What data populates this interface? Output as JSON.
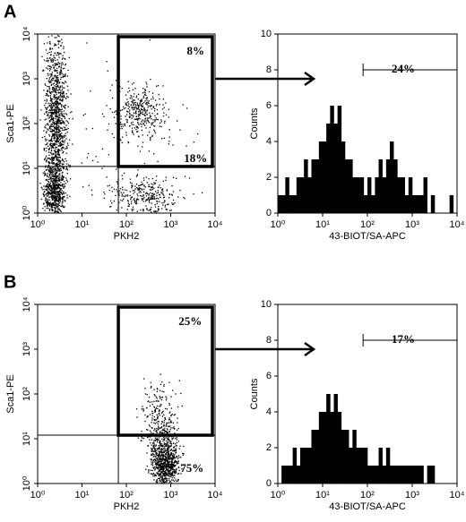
{
  "panels": [
    "A",
    "B"
  ],
  "chart_data": [
    {
      "type": "scatter",
      "xlabel": "PKH2",
      "ylabel": "Sca1-PE",
      "log": true,
      "xlim": [
        1,
        10000
      ],
      "ylim": [
        1,
        10000
      ],
      "xticks": [
        {
          "value": 1,
          "label": "10⁰"
        },
        {
          "value": 10,
          "label": "10¹"
        },
        {
          "value": 100,
          "label": "10²"
        },
        {
          "value": 1000,
          "label": "10³"
        },
        {
          "value": 10000,
          "label": "10⁴"
        }
      ],
      "yticks": [
        {
          "value": 1,
          "label": "10⁰"
        },
        {
          "value": 10,
          "label": "10¹"
        },
        {
          "value": 100,
          "label": "10²"
        },
        {
          "value": 1000,
          "label": "10³"
        },
        {
          "value": 10000,
          "label": "10⁴"
        }
      ],
      "gate": {
        "x": 66,
        "y": 11
      },
      "annotations": [
        "8%",
        "18%"
      ],
      "color": "#000000"
    },
    {
      "type": "histogram",
      "xlabel": "43-BIOT/SA-APC",
      "ylabel": "Counts",
      "log": true,
      "xlim": [
        1,
        10000
      ],
      "ylim": [
        0,
        10
      ],
      "xticks": [
        {
          "value": 1,
          "label": "10⁰"
        },
        {
          "value": 10,
          "label": "10¹"
        },
        {
          "value": 100,
          "label": "10²"
        },
        {
          "value": 1000,
          "label": "10³"
        },
        {
          "value": 10000,
          "label": "10⁴"
        }
      ],
      "yticks": [
        0,
        2,
        4,
        6,
        8,
        10
      ],
      "bins": [
        1,
        1.21,
        1.47,
        1.78,
        2.15,
        2.61,
        3.16,
        3.83,
        4.64,
        5.62,
        6.81,
        8.25,
        10,
        12.1,
        14.7,
        17.8,
        21.5,
        26.1,
        31.6,
        38.3,
        46.4,
        56.2,
        68.1,
        82.5,
        100,
        121,
        147,
        178,
        215,
        261,
        316,
        383,
        464,
        562,
        681,
        825,
        1000,
        1210,
        1470,
        1780,
        2150,
        2610,
        3160,
        3830,
        4640,
        5620,
        6810,
        8250,
        10000
      ],
      "values": [
        1,
        1,
        2,
        1,
        1,
        2,
        2,
        3,
        2,
        3,
        3,
        4,
        4,
        5,
        6,
        5,
        6,
        4,
        3,
        3,
        2,
        2,
        2,
        1,
        2,
        1,
        2,
        3,
        2,
        3,
        4,
        3,
        2,
        2,
        1,
        2,
        1,
        1,
        1,
        2,
        0,
        1,
        0,
        0,
        0,
        0,
        1,
        0
      ],
      "gate": {
        "range": [
          80,
          10000
        ],
        "level": 8
      },
      "annotations": [
        "24%"
      ],
      "color": "#000000"
    },
    {
      "type": "scatter",
      "xlabel": "PKH2",
      "ylabel": "Sca1-PE",
      "log": true,
      "xlim": [
        1,
        10000
      ],
      "ylim": [
        1,
        10000
      ],
      "xticks": [
        {
          "value": 1,
          "label": "10⁰"
        },
        {
          "value": 10,
          "label": "10¹"
        },
        {
          "value": 100,
          "label": "10²"
        },
        {
          "value": 1000,
          "label": "10³"
        },
        {
          "value": 10000,
          "label": "10⁴"
        }
      ],
      "yticks": [
        {
          "value": 1,
          "label": "10⁰"
        },
        {
          "value": 10,
          "label": "10¹"
        },
        {
          "value": 100,
          "label": "10²"
        },
        {
          "value": 1000,
          "label": "10³"
        },
        {
          "value": 10000,
          "label": "10⁴"
        }
      ],
      "gate": {
        "x": 66,
        "y": 12
      },
      "annotations": [
        "25%",
        "75%"
      ],
      "color": "#000000"
    },
    {
      "type": "histogram",
      "xlabel": "43-BIOT/SA-APC",
      "ylabel": "Counts",
      "log": true,
      "xlim": [
        1,
        10000
      ],
      "ylim": [
        0,
        10
      ],
      "xticks": [
        {
          "value": 1,
          "label": "10⁰"
        },
        {
          "value": 10,
          "label": "10¹"
        },
        {
          "value": 100,
          "label": "10²"
        },
        {
          "value": 1000,
          "label": "10³"
        },
        {
          "value": 10000,
          "label": "10⁴"
        }
      ],
      "yticks": [
        0,
        2,
        4,
        6,
        8,
        10
      ],
      "bins": [
        1,
        1.21,
        1.47,
        1.78,
        2.15,
        2.61,
        3.16,
        3.83,
        4.64,
        5.62,
        6.81,
        8.25,
        10,
        12.1,
        14.7,
        17.8,
        21.5,
        26.1,
        31.6,
        38.3,
        46.4,
        56.2,
        68.1,
        82.5,
        100,
        121,
        147,
        178,
        215,
        261,
        316,
        383,
        464,
        562,
        681,
        825,
        1000,
        1210,
        1470,
        1780,
        2150,
        2610,
        3160,
        3830,
        4640,
        5620,
        6810,
        8250,
        10000
      ],
      "values": [
        0,
        1,
        1,
        1,
        2,
        1,
        2,
        2,
        2,
        3,
        3,
        4,
        4,
        5,
        4,
        5,
        4,
        3,
        3,
        2,
        3,
        2,
        2,
        2,
        1,
        1,
        1,
        2,
        1,
        2,
        1,
        1,
        1,
        1,
        1,
        1,
        1,
        1,
        1,
        0,
        1,
        1,
        0,
        0,
        0,
        0,
        0,
        0
      ],
      "gate": {
        "range": [
          80,
          10000
        ],
        "level": 8
      },
      "annotations": [
        "17%"
      ],
      "color": "#000000"
    }
  ]
}
